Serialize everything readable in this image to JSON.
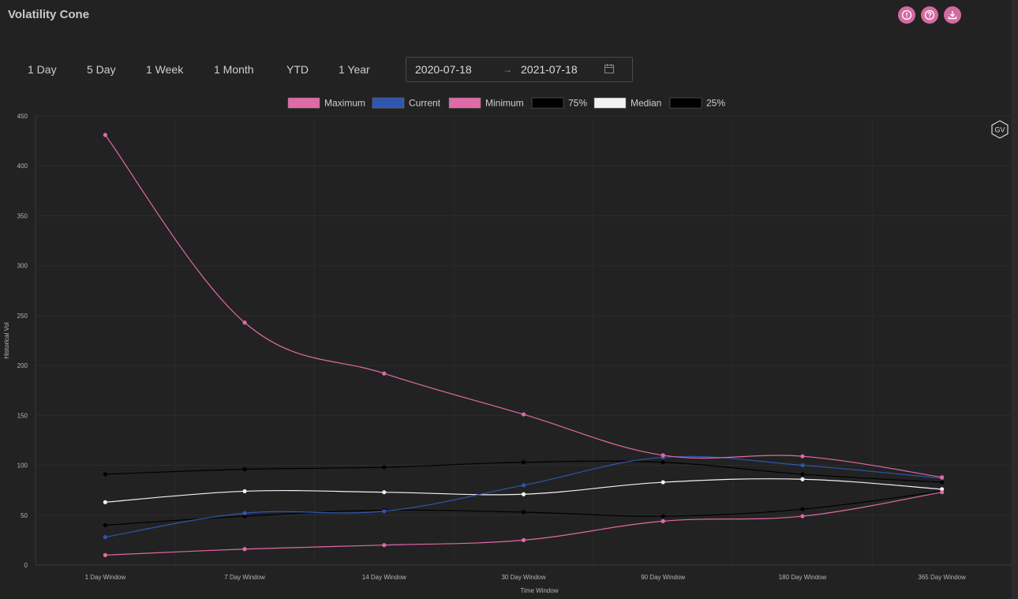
{
  "header": {
    "title": "Volatility Cone",
    "icons": [
      "info-icon",
      "help-icon",
      "download-icon"
    ]
  },
  "ranges": {
    "one_day": "1 Day",
    "five_day": "5 Day",
    "one_week": "1 Week",
    "one_month": "1 Month",
    "ytd": "YTD",
    "one_year": "1 Year"
  },
  "date_range": {
    "start": "2020-07-18",
    "separator": "→",
    "end": "2021-07-18"
  },
  "badge": "GV",
  "colors": {
    "background": "#222222",
    "accent": "#d36aa0",
    "maximum": "#e06aa6",
    "current": "#2e56b0",
    "minimum": "#e06aa6",
    "p75": "#000000",
    "median": "#f2f2f2",
    "p25": "#000000"
  },
  "chart_data": {
    "type": "line",
    "title": "",
    "xlabel": "Time Window",
    "ylabel": "Historical Vol",
    "ylim": [
      0,
      450
    ],
    "yticks": [
      0,
      50,
      100,
      150,
      200,
      250,
      300,
      350,
      400,
      450
    ],
    "grid": true,
    "legend_position": "top",
    "categories": [
      "1 Day Window",
      "7 Day Window",
      "14 Day Window",
      "30 Day Window",
      "90 Day Window",
      "180 Day Window",
      "365 Day Window"
    ],
    "series": [
      {
        "name": "Maximum",
        "color": "#e06aa6",
        "values": [
          431,
          243,
          192,
          151,
          110,
          109,
          88
        ]
      },
      {
        "name": "Current",
        "color": "#2e56b0",
        "values": [
          28,
          52,
          54,
          80,
          108,
          100,
          87
        ]
      },
      {
        "name": "Minimum",
        "color": "#e06aa6",
        "values": [
          10,
          16,
          20,
          25,
          44,
          49,
          73
        ]
      },
      {
        "name": "75%",
        "color": "#000000",
        "values": [
          91,
          96,
          98,
          103,
          103,
          91,
          83
        ]
      },
      {
        "name": "Median",
        "color": "#f2f2f2",
        "values": [
          63,
          74,
          73,
          71,
          83,
          86,
          76
        ]
      },
      {
        "name": "25%",
        "color": "#000000",
        "values": [
          40,
          49,
          55,
          53,
          49,
          56,
          74
        ]
      }
    ]
  }
}
